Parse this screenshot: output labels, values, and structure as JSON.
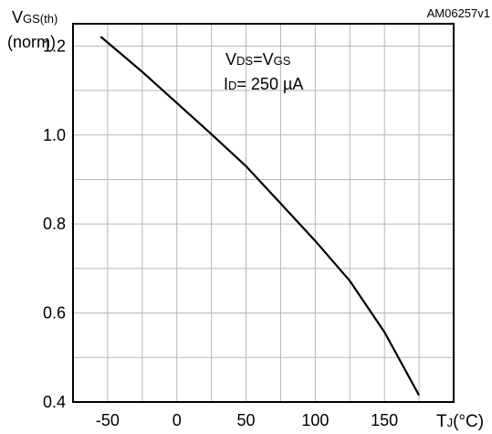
{
  "chart_data": {
    "type": "line",
    "doc_id": "AM06257v1",
    "ylabel": {
      "main": "V",
      "sub": "GS(th)",
      "unit": "(norm)"
    },
    "xlabel": {
      "main": "T",
      "sub": "J",
      "unit": "(°C)"
    },
    "conditions": [
      {
        "parts": [
          {
            "t": "V",
            "s": false
          },
          {
            "t": "DS",
            "s": true
          },
          {
            "t": "=V",
            "s": false
          },
          {
            "t": "GS",
            "s": true
          }
        ]
      },
      {
        "parts": [
          {
            "t": "I",
            "s": false
          },
          {
            "t": "D",
            "s": true
          },
          {
            "t": "= 250 µA",
            "s": false
          }
        ]
      }
    ],
    "xlim": [
      -75,
      200
    ],
    "ylim": [
      0.4,
      1.25
    ],
    "x_ticks": [
      -50,
      0,
      50,
      100,
      150
    ],
    "x_tick_labels": [
      "-50",
      "0",
      "50",
      "100",
      "150"
    ],
    "y_ticks": [
      0.4,
      0.6,
      0.8,
      1.0,
      1.2
    ],
    "y_tick_labels": [
      "0.4",
      "0.6",
      "0.8",
      "1.0",
      "1.2"
    ],
    "x_grid": [
      -50,
      -25,
      0,
      25,
      50,
      75,
      100,
      125,
      150,
      175
    ],
    "y_grid": [
      0.5,
      0.6,
      0.7,
      0.8,
      0.9,
      1.0,
      1.1,
      1.2
    ],
    "grid": true,
    "series": [
      {
        "x": [
          -55,
          -25,
          0,
          25,
          50,
          75,
          100,
          125,
          150,
          175
        ],
        "y": [
          1.221,
          1.142,
          1.072,
          1.002,
          0.93,
          0.846,
          0.762,
          0.672,
          0.557,
          0.415
        ]
      }
    ]
  }
}
